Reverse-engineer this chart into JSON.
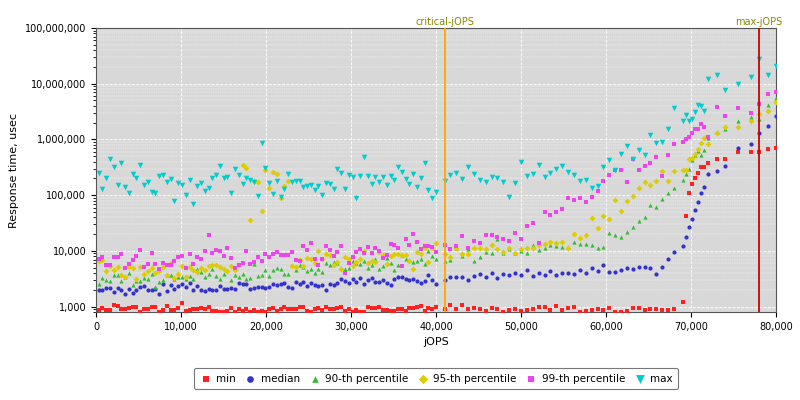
{
  "xlabel": "jOPS",
  "ylabel": "Response time, usec",
  "xlim": [
    0,
    80000
  ],
  "ylim_log": [
    800,
    100000000
  ],
  "critical_jops": 41000,
  "max_jops": 78000,
  "fig_bg": "#ffffff",
  "plot_bg": "#d8d8d8",
  "grid_color": "#ffffff",
  "grid_style": "--",
  "vline_critical_color": "#ffa500",
  "vline_max_color": "#cc0000",
  "vline_label_color": "#888800",
  "vline_label_critical": "critical-jOPS",
  "vline_label_max": "max-jOPS",
  "vline_label_fontsize": 7,
  "series_min": {
    "color": "#ff2020",
    "marker": "s",
    "ms": 3,
    "label": "min"
  },
  "series_median": {
    "color": "#3333cc",
    "marker": "o",
    "ms": 3,
    "label": "median"
  },
  "series_p90": {
    "color": "#33bb33",
    "marker": "^",
    "ms": 3,
    "label": "90-th percentile"
  },
  "series_p95": {
    "color": "#ddcc00",
    "marker": "D",
    "ms": 3,
    "label": "95-th percentile"
  },
  "series_p99": {
    "color": "#ee44ee",
    "marker": "s",
    "ms": 3,
    "label": "99-th percentile"
  },
  "series_max": {
    "color": "#00cccc",
    "marker": "v",
    "ms": 4,
    "label": "max"
  },
  "xticks": [
    0,
    10000,
    20000,
    30000,
    40000,
    50000,
    60000,
    70000,
    80000
  ],
  "yticks_major": [
    1000,
    10000,
    100000,
    1000000,
    10000000,
    100000000
  ],
  "tick_fontsize": 7,
  "axis_label_fontsize": 8,
  "legend_fontsize": 7.5
}
